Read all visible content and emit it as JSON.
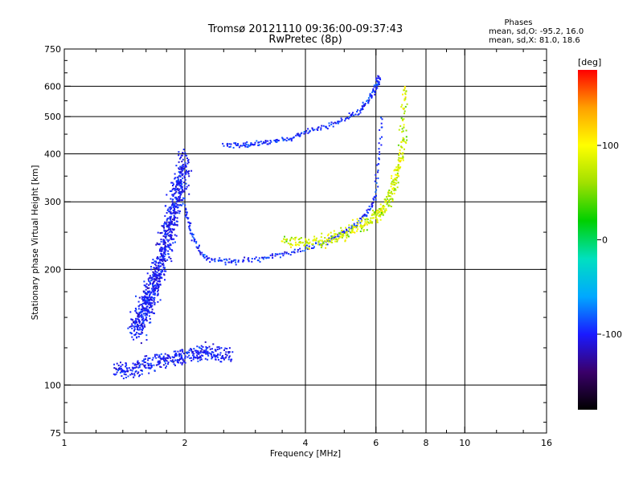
{
  "chart_data": {
    "type": "scatter",
    "title": "Tromsø 20121110 09:36:00-09:37:43",
    "subtitle": "RwPretec (8p)",
    "xlabel": "Frequency [MHz]",
    "ylabel": "Stationary phase Virtual Height [km]",
    "x_scale": "log",
    "y_scale": "log",
    "xlim": [
      1,
      16
    ],
    "ylim": [
      75,
      750
    ],
    "x_ticks": [
      1,
      2,
      4,
      6,
      8,
      10,
      16
    ],
    "x_tick_labels": [
      "1",
      "2",
      "4",
      "6",
      "8",
      "10",
      "16"
    ],
    "y_ticks": [
      75,
      100,
      200,
      300,
      400,
      500,
      600,
      750
    ],
    "y_tick_labels": [
      "75",
      "100",
      "200",
      "300",
      "400",
      "500",
      "600",
      "750"
    ],
    "grid": true,
    "stats": {
      "header": "Phases",
      "line_o": "mean, sd,O: -95.2, 16.0",
      "line_x": "mean, sd,X:  81.0, 18.6"
    },
    "colorbar": {
      "unit_label": "[deg]",
      "ticks": [
        100,
        0,
        -100
      ],
      "tick_labels": [
        "100",
        "0",
        "-100"
      ],
      "range": [
        -180,
        180
      ],
      "colors": [
        "#000000",
        "#3a006a",
        "#1a1aff",
        "#00a8ff",
        "#00e0c0",
        "#00d000",
        "#a0e000",
        "#ffff00",
        "#ffa000",
        "#ff0000"
      ]
    },
    "series": [
      {
        "type": "o-trace-lower",
        "phase": -95,
        "x": [
          2.0,
          2.05,
          2.1,
          2.2,
          2.3,
          2.5,
          2.7,
          3.0,
          3.3,
          3.6,
          4.0,
          4.4,
          4.8,
          5.2,
          5.5,
          5.8,
          6.0,
          6.1,
          6.2
        ],
        "y": [
          290,
          260,
          240,
          220,
          212,
          210,
          210,
          212,
          216,
          220,
          226,
          234,
          244,
          256,
          268,
          285,
          310,
          380,
          500
        ]
      },
      {
        "type": "o-trace-upper",
        "phase": -95,
        "x": [
          2.5,
          2.8,
          3.0,
          3.3,
          3.7,
          4.0,
          4.5,
          5.0,
          5.5,
          5.8,
          6.0,
          6.1
        ],
        "y": [
          420,
          420,
          425,
          430,
          440,
          455,
          470,
          490,
          520,
          560,
          600,
          640
        ]
      },
      {
        "type": "x-trace",
        "phase": 81,
        "x": [
          3.5,
          4.0,
          4.5,
          5.0,
          5.5,
          6.0,
          6.3,
          6.6,
          6.8,
          7.0,
          7.1
        ],
        "y": [
          240,
          232,
          238,
          248,
          260,
          275,
          290,
          320,
          360,
          420,
          600
        ]
      },
      {
        "type": "e-layer",
        "phase": -100,
        "x": [
          1.35,
          1.5,
          1.7,
          1.9,
          2.1,
          2.3,
          2.6
        ],
        "y": [
          108,
          110,
          115,
          118,
          120,
          122,
          120
        ]
      },
      {
        "type": "spread-f-region",
        "phase": -100,
        "x": [
          1.5,
          1.6,
          1.7,
          1.8,
          1.9,
          2.0
        ],
        "y": [
          140,
          160,
          190,
          240,
          300,
          380
        ]
      }
    ]
  }
}
